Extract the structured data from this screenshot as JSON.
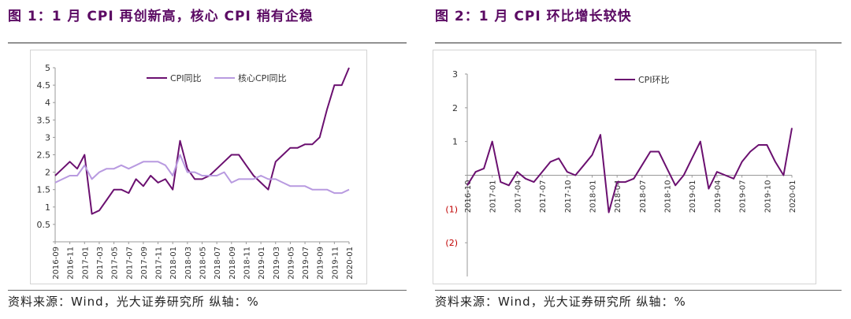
{
  "figures": [
    {
      "title": "图 1：1 月 CPI 再创新高，核心 CPI 稍有企稳",
      "source": "资料来源：Wind，光大证券研究所  纵轴：%"
    },
    {
      "title": "图 2：1 月 CPI 环比增长较快",
      "source": "资料来源：Wind，光大证券研究所  纵轴：%"
    }
  ],
  "colors": {
    "cpi": "#6b1070",
    "core": "#b89ae0",
    "title": "#5b0a63",
    "neg_label": "#c00000"
  },
  "chart_data": [
    {
      "type": "line",
      "legend_position": "top",
      "ylim": [
        0,
        5
      ],
      "yticks": [
        "",
        "0.5",
        "1",
        "1.5",
        "2",
        "2.5",
        "3",
        "3.5",
        "4",
        "4.5",
        "5"
      ],
      "x": [
        "2016-09",
        "2016-10",
        "2016-11",
        "2016-12",
        "2017-01",
        "2017-02",
        "2017-03",
        "2017-04",
        "2017-05",
        "2017-06",
        "2017-07",
        "2017-08",
        "2017-09",
        "2017-10",
        "2017-11",
        "2017-12",
        "2018-01",
        "2018-02",
        "2018-03",
        "2018-04",
        "2018-05",
        "2018-06",
        "2018-07",
        "2018-08",
        "2018-09",
        "2018-10",
        "2018-11",
        "2018-12",
        "2019-01",
        "2019-02",
        "2019-03",
        "2019-04",
        "2019-05",
        "2019-06",
        "2019-07",
        "2019-08",
        "2019-09",
        "2019-10",
        "2019-11",
        "2019-12",
        "2020-01"
      ],
      "xtick_labels": [
        "2016-09",
        "2016-11",
        "2017-01",
        "2017-03",
        "2017-05",
        "2017-07",
        "2017-09",
        "2017-11",
        "2018-01",
        "2018-03",
        "2018-05",
        "2018-07",
        "2018-09",
        "2018-11",
        "2019-01",
        "2019-03",
        "2019-05",
        "2019-07",
        "2019-09",
        "2019-11",
        "2020-01"
      ],
      "series": [
        {
          "name": "CPI同比",
          "values": [
            1.9,
            2.1,
            2.3,
            2.1,
            2.5,
            0.8,
            0.9,
            1.2,
            1.5,
            1.5,
            1.4,
            1.8,
            1.6,
            1.9,
            1.7,
            1.8,
            1.5,
            2.9,
            2.1,
            1.8,
            1.8,
            1.9,
            2.1,
            2.3,
            2.5,
            2.5,
            2.2,
            1.9,
            1.7,
            1.5,
            2.3,
            2.5,
            2.7,
            2.7,
            2.8,
            2.8,
            3.0,
            3.8,
            4.5,
            4.5,
            5.0
          ]
        },
        {
          "name": "核心CPI同比",
          "values": [
            1.7,
            1.8,
            1.9,
            1.9,
            2.2,
            1.8,
            2.0,
            2.1,
            2.1,
            2.2,
            2.1,
            2.2,
            2.3,
            2.3,
            2.3,
            2.2,
            1.9,
            2.5,
            2.0,
            2.0,
            1.9,
            1.9,
            1.9,
            2.0,
            1.7,
            1.8,
            1.8,
            1.8,
            1.9,
            1.8,
            1.8,
            1.7,
            1.6,
            1.6,
            1.6,
            1.5,
            1.5,
            1.5,
            1.4,
            1.4,
            1.5
          ]
        }
      ]
    },
    {
      "type": "line",
      "legend_position": "top",
      "ylim": [
        -3,
        3
      ],
      "yticks": [
        "(2)",
        "(1)",
        "",
        "1",
        "2",
        "3"
      ],
      "ytick_values": [
        -2,
        -1,
        0,
        1,
        2,
        3
      ],
      "x": [
        "2016-10",
        "2016-11",
        "2016-12",
        "2017-01",
        "2017-02",
        "2017-03",
        "2017-04",
        "2017-05",
        "2017-06",
        "2017-07",
        "2017-08",
        "2017-09",
        "2017-10",
        "2017-11",
        "2017-12",
        "2018-01",
        "2018-02",
        "2018-03",
        "2018-04",
        "2018-05",
        "2018-06",
        "2018-07",
        "2018-08",
        "2018-09",
        "2018-10",
        "2018-11",
        "2018-12",
        "2019-01",
        "2019-02",
        "2019-03",
        "2019-04",
        "2019-05",
        "2019-06",
        "2019-07",
        "2019-08",
        "2019-09",
        "2019-10",
        "2019-11",
        "2019-12",
        "2020-01"
      ],
      "xtick_labels": [
        "2016-10",
        "2017-01",
        "2017-04",
        "2017-07",
        "2017-10",
        "2018-01",
        "2018-04",
        "2018-07",
        "2018-10",
        "2019-01",
        "2019-04",
        "2019-07",
        "2019-10",
        "2020-01"
      ],
      "series": [
        {
          "name": "CPI环比",
          "values": [
            -0.3,
            0.1,
            0.2,
            1.0,
            -0.2,
            -0.3,
            0.1,
            -0.1,
            -0.2,
            0.1,
            0.4,
            0.5,
            0.1,
            0.0,
            0.3,
            0.6,
            1.2,
            -1.1,
            -0.2,
            -0.2,
            -0.1,
            0.3,
            0.7,
            0.7,
            0.2,
            -0.3,
            0.0,
            0.5,
            1.0,
            -0.4,
            0.1,
            0.0,
            -0.1,
            0.4,
            0.7,
            0.9,
            0.9,
            0.4,
            0.0,
            1.4
          ]
        }
      ]
    }
  ]
}
